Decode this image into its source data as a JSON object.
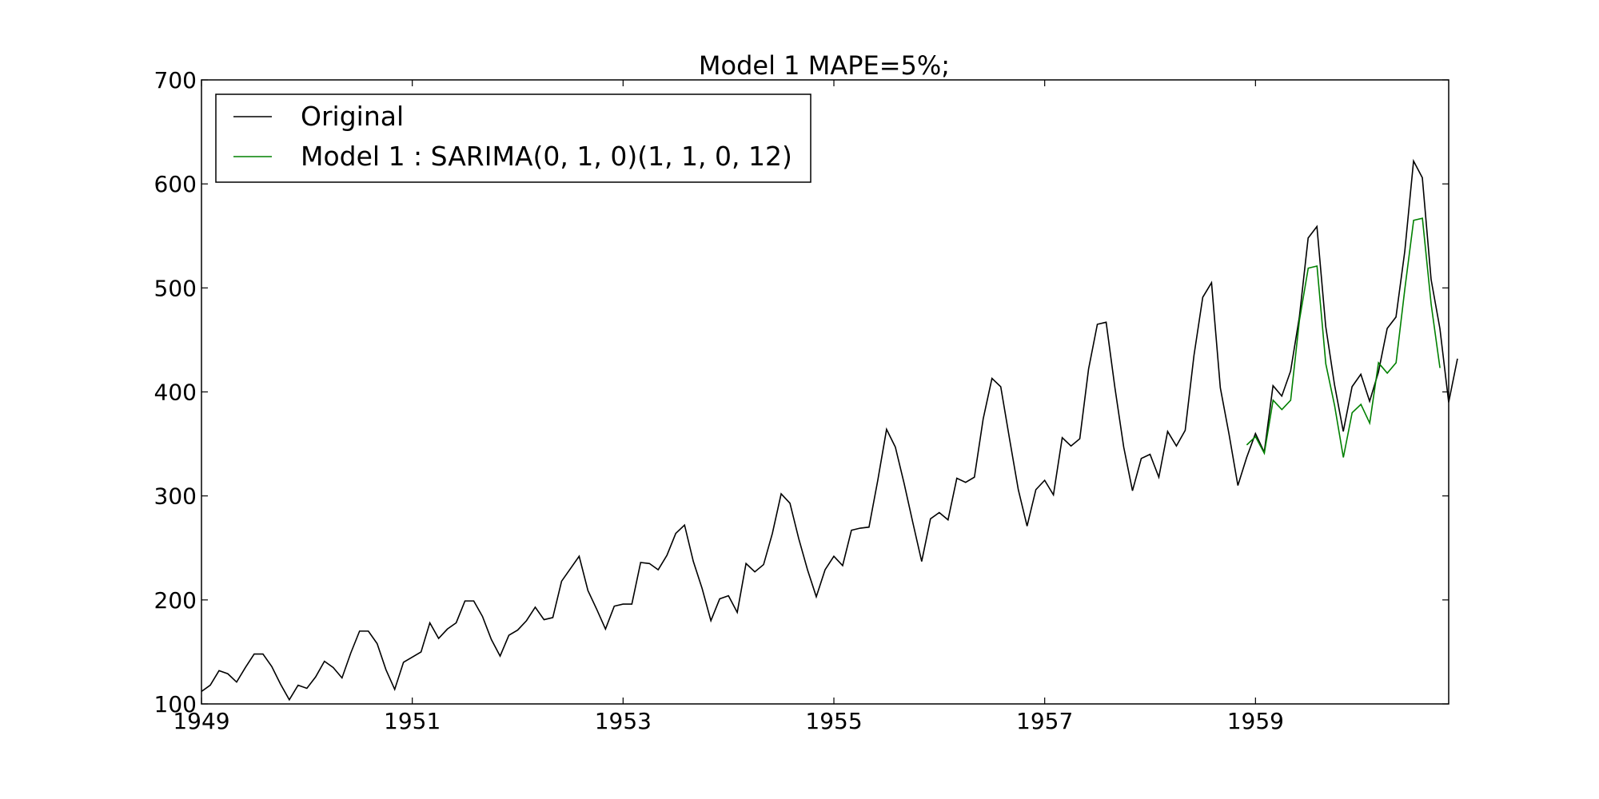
{
  "chart_data": {
    "type": "line",
    "title": "Model 1 MAPE=5%;",
    "xlabel": "",
    "ylabel": "",
    "xlim": [
      1949,
      1960.833
    ],
    "ylim": [
      100,
      700
    ],
    "x_ticks": [
      1949,
      1951,
      1953,
      1955,
      1957,
      1959
    ],
    "x_tick_labels": [
      "1949",
      "1951",
      "1953",
      "1955",
      "1957",
      "1959"
    ],
    "y_ticks": [
      100,
      200,
      300,
      400,
      500,
      600,
      700
    ],
    "y_tick_labels": [
      "100",
      "200",
      "300",
      "400",
      "500",
      "600",
      "700"
    ],
    "grid": false,
    "legend_position": "top-left",
    "series": [
      {
        "name": "Original",
        "color": "#000000",
        "x_start": 1949,
        "x_step": 0.08333,
        "values": [
          112,
          118,
          132,
          129,
          121,
          135,
          148,
          148,
          136,
          119,
          104,
          118,
          115,
          126,
          141,
          135,
          125,
          149,
          170,
          170,
          158,
          133,
          114,
          140,
          145,
          150,
          178,
          163,
          172,
          178,
          199,
          199,
          184,
          162,
          146,
          166,
          171,
          180,
          193,
          181,
          183,
          218,
          230,
          242,
          209,
          191,
          172,
          194,
          196,
          196,
          236,
          235,
          229,
          243,
          264,
          272,
          237,
          211,
          180,
          201,
          204,
          188,
          235,
          227,
          234,
          264,
          302,
          293,
          259,
          229,
          203,
          229,
          242,
          233,
          267,
          269,
          270,
          315,
          364,
          347,
          312,
          274,
          237,
          278,
          284,
          277,
          317,
          313,
          318,
          374,
          413,
          405,
          355,
          306,
          271,
          306,
          315,
          301,
          356,
          348,
          355,
          422,
          465,
          467,
          404,
          347,
          305,
          336,
          340,
          318,
          362,
          348,
          363,
          435,
          491,
          505,
          404,
          359,
          310,
          337,
          360,
          342,
          406,
          396,
          420,
          472,
          548,
          559,
          463,
          407,
          362,
          405,
          417,
          391,
          419,
          461,
          472,
          535,
          622,
          606,
          508,
          461,
          390,
          432
        ]
      },
      {
        "name": "Model 1 : SARIMA(0, 1, 0)(1, 1, 0, 12)",
        "color": "#008000",
        "x_start": 1958.917,
        "x_step": 0.08333,
        "values": [
          349,
          357,
          341,
          392,
          383,
          392,
          469,
          519,
          521,
          427,
          387,
          337,
          380,
          388,
          370,
          428,
          418,
          428,
          499,
          565,
          567,
          484,
          423
        ]
      }
    ]
  }
}
